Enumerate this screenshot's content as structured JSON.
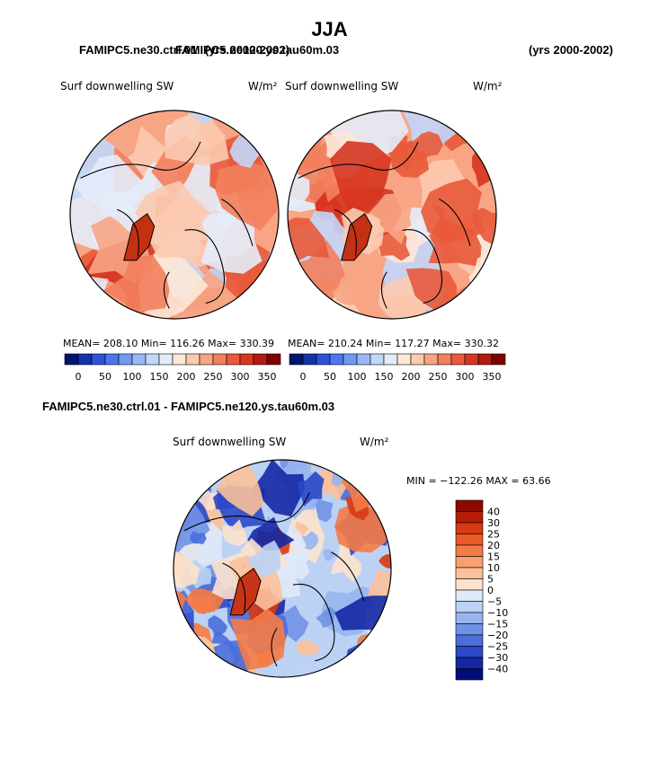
{
  "page": {
    "title": "JJA",
    "left_case": "FAMIPC5.ne30.ctrl.01",
    "left_years": "(yrs 2000-2002)",
    "right_case": "FAMIPC5.ne120.ys.tau60m.03",
    "right_years": "(yrs 2000-2002)",
    "diff_title": "FAMIPC5.ne30.ctrl.01 - FAMIPC5.ne120.ys.tau60m.03"
  },
  "chart_data": [
    {
      "type": "heatmap",
      "projection": "north polar stereographic",
      "title": "Surf downwelling SW",
      "units": "W/m²",
      "stats_text": "MEAN= 208.10   Min= 116.26   Max= 330.39",
      "mean": 208.1,
      "min": 116.26,
      "max": 330.39,
      "colorbar": {
        "tick_labels": [
          "0",
          "50",
          "100",
          "150",
          "200",
          "250",
          "300",
          "350"
        ],
        "levels": [
          0,
          25,
          50,
          75,
          100,
          125,
          150,
          175,
          200,
          225,
          250,
          275,
          300,
          325,
          350
        ],
        "colors": [
          "#00156e",
          "#1632a8",
          "#2c54d8",
          "#4a78ec",
          "#7099f2",
          "#9ab8f7",
          "#c2d6f8",
          "#e4ecfa",
          "#fde8d8",
          "#fbcab0",
          "#f7a585",
          "#f27f5d",
          "#e85a3a",
          "#d63620",
          "#b11c10",
          "#820000"
        ]
      }
    },
    {
      "type": "heatmap",
      "projection": "north polar stereographic",
      "title": "Surf downwelling SW",
      "units": "W/m²",
      "stats_text": "MEAN= 210.24   Min= 117.27   Max= 330.32",
      "mean": 210.24,
      "min": 117.27,
      "max": 330.32,
      "colorbar": {
        "tick_labels": [
          "0",
          "50",
          "100",
          "150",
          "200",
          "250",
          "300",
          "350"
        ],
        "levels": [
          0,
          25,
          50,
          75,
          100,
          125,
          150,
          175,
          200,
          225,
          250,
          275,
          300,
          325,
          350
        ],
        "colors": [
          "#00156e",
          "#1632a8",
          "#2c54d8",
          "#4a78ec",
          "#7099f2",
          "#9ab8f7",
          "#c2d6f8",
          "#e4ecfa",
          "#fde8d8",
          "#fbcab0",
          "#f7a585",
          "#f27f5d",
          "#e85a3a",
          "#d63620",
          "#b11c10",
          "#820000"
        ]
      }
    },
    {
      "type": "heatmap",
      "projection": "north polar stereographic",
      "title": "Surf downwelling SW",
      "units": "W/m²",
      "stats_text": "MIN = −122.26 MAX =  63.66",
      "min": -122.26,
      "max": 63.66,
      "colorbar": {
        "orientation": "vertical",
        "tick_labels": [
          "40",
          "30",
          "25",
          "20",
          "15",
          "10",
          "5",
          "0",
          "−5",
          "−10",
          "−15",
          "−20",
          "−25",
          "−30",
          "−40"
        ],
        "colors": [
          "#8b0a00",
          "#b51c06",
          "#d73a14",
          "#ec5a28",
          "#f57b46",
          "#f9a06e",
          "#fbc19b",
          "#fde2cc",
          "#dfe9f8",
          "#bcd2f4",
          "#97b5ee",
          "#6f92e6",
          "#4a6edc",
          "#2a48c8",
          "#1428a4",
          "#000e7a"
        ]
      }
    }
  ]
}
